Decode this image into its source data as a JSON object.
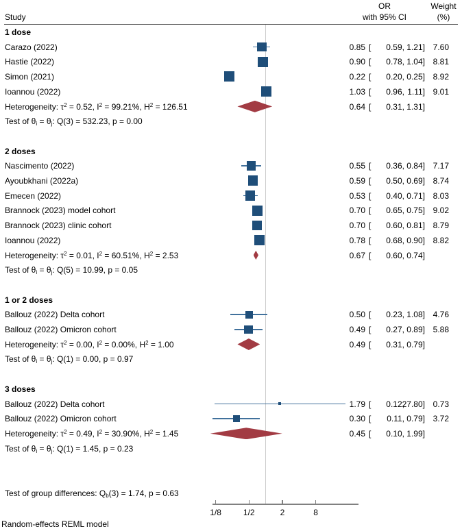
{
  "colors": {
    "square_navy": "#1F4E79",
    "ci_line_blue": "#41719C",
    "diamond_maroon": "#A23B43",
    "ref_line_gray": "#CDCDCD",
    "axis_gray": "#808080",
    "header_rule": "#4A4A4A",
    "text": "#000000"
  },
  "chart_data": {
    "type": "forest",
    "effect_measure": "OR",
    "header": {
      "study": "Study",
      "effect_line1": "OR",
      "effect_line2": "with 95% CI",
      "weight_line1": "Weight",
      "weight_line2": "(%)"
    },
    "punct": {
      "open": "[",
      "comma": ",",
      "close": "]"
    },
    "xaxis": {
      "scale": "log",
      "ref_line_value": 1,
      "ticks": [
        {
          "label": "1/8",
          "value": 0.125
        },
        {
          "label": "1/2",
          "value": 0.5
        },
        {
          "label": "2",
          "value": 2
        },
        {
          "label": "8",
          "value": 8
        }
      ]
    },
    "groups": [
      {
        "name": "1 dose",
        "studies": [
          {
            "label": "Carazo (2022)",
            "est": "0.85",
            "lo": "0.59",
            "hi": "1.21",
            "weight": "7.60"
          },
          {
            "label": "Hastie (2022)",
            "est": "0.90",
            "lo": "0.78",
            "hi": "1.04",
            "weight": "8.81"
          },
          {
            "label": "Simon (2021)",
            "est": "0.22",
            "lo": "0.20",
            "hi": "0.25",
            "weight": "8.92"
          },
          {
            "label": "Ioannou (2022)",
            "est": "1.03",
            "lo": "0.96",
            "hi": "1.11",
            "weight": "9.01"
          }
        ],
        "summary": {
          "est": "0.64",
          "lo": "0.31",
          "hi": "1.31"
        },
        "heterogeneity": "Heterogeneity: τ^{2} = 0.52, I^{2} = 99.21%, H^{2} = 126.51",
        "test": "Test of θ_{i} = θ_{j}: Q(3) = 532.23, p = 0.00"
      },
      {
        "name": "2 doses",
        "studies": [
          {
            "label": "Nascimento (2022)",
            "est": "0.55",
            "lo": "0.36",
            "hi": "0.84",
            "weight": "7.17"
          },
          {
            "label": "Ayoubkhani (2022a)",
            "est": "0.59",
            "lo": "0.50",
            "hi": "0.69",
            "weight": "8.74"
          },
          {
            "label": "Emecen (2022)",
            "est": "0.53",
            "lo": "0.40",
            "hi": "0.71",
            "weight": "8.03"
          },
          {
            "label": "Brannock (2023) model cohort",
            "est": "0.70",
            "lo": "0.65",
            "hi": "0.75",
            "weight": "9.02"
          },
          {
            "label": "Brannock (2023) clinic cohort",
            "est": "0.70",
            "lo": "0.60",
            "hi": "0.81",
            "weight": "8.79"
          },
          {
            "label": "Ioannou (2022)",
            "est": "0.78",
            "lo": "0.68",
            "hi": "0.90",
            "weight": "8.82"
          }
        ],
        "summary": {
          "est": "0.67",
          "lo": "0.60",
          "hi": "0.74"
        },
        "heterogeneity": "Heterogeneity: τ^{2} = 0.01, I^{2} = 60.51%, H^{2} = 2.53",
        "test": "Test of θ_{i} = θ_{j}: Q(5) = 10.99, p = 0.05"
      },
      {
        "name": "1 or 2 doses",
        "studies": [
          {
            "label": "Ballouz (2022) Delta cohort",
            "est": "0.50",
            "lo": "0.23",
            "hi": "1.08",
            "weight": "4.76"
          },
          {
            "label": "Ballouz (2022) Omicron cohort",
            "est": "0.49",
            "lo": "0.27",
            "hi": "0.89",
            "weight": "5.88"
          }
        ],
        "summary": {
          "est": "0.49",
          "lo": "0.31",
          "hi": "0.79"
        },
        "heterogeneity": "Heterogeneity: τ^{2} = 0.00, I^{2} = 0.00%, H^{2} = 1.00",
        "test": "Test of θ_{i} = θ_{j}: Q(1) = 0.00, p = 0.97"
      },
      {
        "name": "3 doses",
        "studies": [
          {
            "label": "Ballouz (2022)  Delta cohort",
            "est": "1.79",
            "lo": "0.12",
            "hi": "27.80",
            "weight": "0.73"
          },
          {
            "label": "Ballouz (2022) Omicron cohort",
            "est": "0.30",
            "lo": "0.11",
            "hi": "0.79",
            "weight": "3.72"
          }
        ],
        "summary": {
          "est": "0.45",
          "lo": "0.10",
          "hi": "1.99"
        },
        "heterogeneity": "Heterogeneity: τ^{2} = 0.49, I^{2} = 30.90%, H^{2} = 1.45",
        "test": "Test of θ_{i} = θ_{j}: Q(1) = 1.45, p = 0.23"
      }
    ],
    "group_difference_test": "Test of group differences: Q_{b}(3) = 1.74, p = 0.63",
    "model": "Random-effects REML model"
  }
}
